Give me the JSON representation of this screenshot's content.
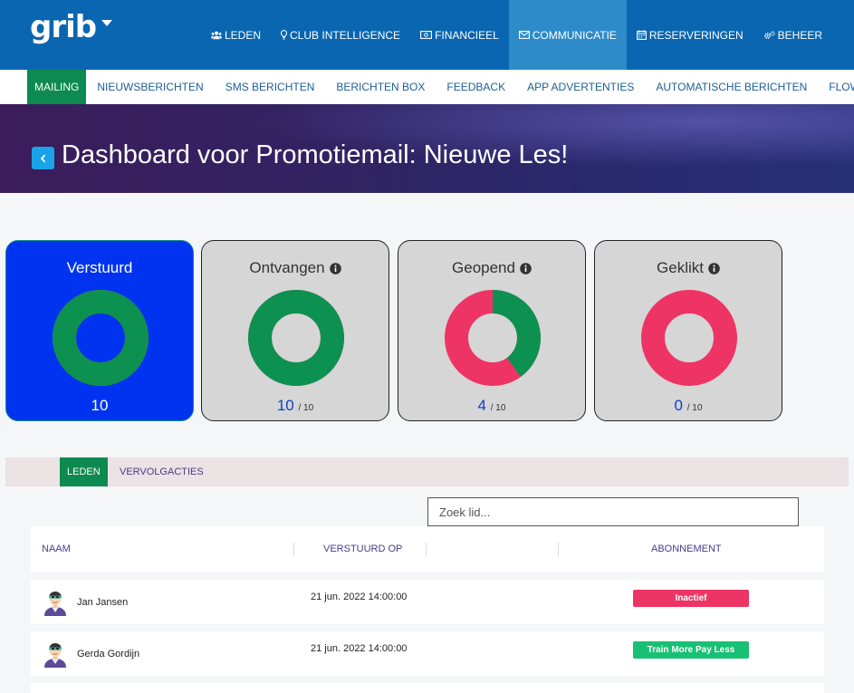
{
  "brand": {
    "logo": "grib"
  },
  "colors": {
    "topbar": "#0a66b0",
    "topbar_active": "#2e8bc9",
    "accent_green": "#0d8a4f",
    "donut_green": "#0d9150",
    "donut_red": "#ee3464",
    "selected_card": "#0033f0",
    "badge_inactive": "#ee3464",
    "badge_active": "#18c073"
  },
  "topnav": {
    "items": [
      {
        "label": "LEDEN",
        "icon": "users-icon"
      },
      {
        "label": "CLUB INTELLIGENCE",
        "icon": "lightbulb-icon"
      },
      {
        "label": "FINANCIEEL",
        "icon": "money-icon"
      },
      {
        "label": "COMMUNICATIE",
        "icon": "envelope-icon",
        "active": true
      },
      {
        "label": "RESERVERINGEN",
        "icon": "calendar-icon"
      },
      {
        "label": "BEHEER",
        "icon": "cogs-icon"
      }
    ]
  },
  "subnav": {
    "items": [
      {
        "label": "MAILING",
        "active": true
      },
      {
        "label": "NIEUWSBERICHTEN"
      },
      {
        "label": "SMS BERICHTEN"
      },
      {
        "label": "BERICHTEN BOX"
      },
      {
        "label": "FEEDBACK"
      },
      {
        "label": "APP ADVERTENTIES"
      },
      {
        "label": "AUTOMATISCHE BERICHTEN"
      },
      {
        "label": "FLOW"
      }
    ]
  },
  "page": {
    "title": "Dashboard voor Promotiemail: Nieuwe Les!"
  },
  "stats": [
    {
      "title": "Verstuurd",
      "count": "10",
      "total": "",
      "fraction": 1.0,
      "selected": true,
      "has_info": false
    },
    {
      "title": "Ontvangen",
      "count": "10",
      "total": "/ 10",
      "fraction": 1.0,
      "selected": false,
      "has_info": true
    },
    {
      "title": "Geopend",
      "count": "4",
      "total": "/ 10",
      "fraction": 0.4,
      "selected": false,
      "has_info": true
    },
    {
      "title": "Geklikt",
      "count": "0",
      "total": "/ 10",
      "fraction": 0.0,
      "selected": false,
      "has_info": true
    }
  ],
  "tabs": [
    {
      "label": "LEDEN",
      "active": true
    },
    {
      "label": "VERVOLGACTIES",
      "active": false
    }
  ],
  "search": {
    "placeholder": "Zoek lid...",
    "value": ""
  },
  "table": {
    "headers": [
      "NAAM",
      "VERSTUURD OP",
      "",
      "ABONNEMENT"
    ],
    "rows": [
      {
        "name": "Jan Jansen",
        "sent": "21 jun. 2022 14:00:00",
        "subscription": "Inactief",
        "status": "inactive"
      },
      {
        "name": "Gerda Gordijn",
        "sent": "21 jun. 2022 14:00:00",
        "subscription": "Train More Pay Less",
        "status": "active"
      }
    ]
  }
}
